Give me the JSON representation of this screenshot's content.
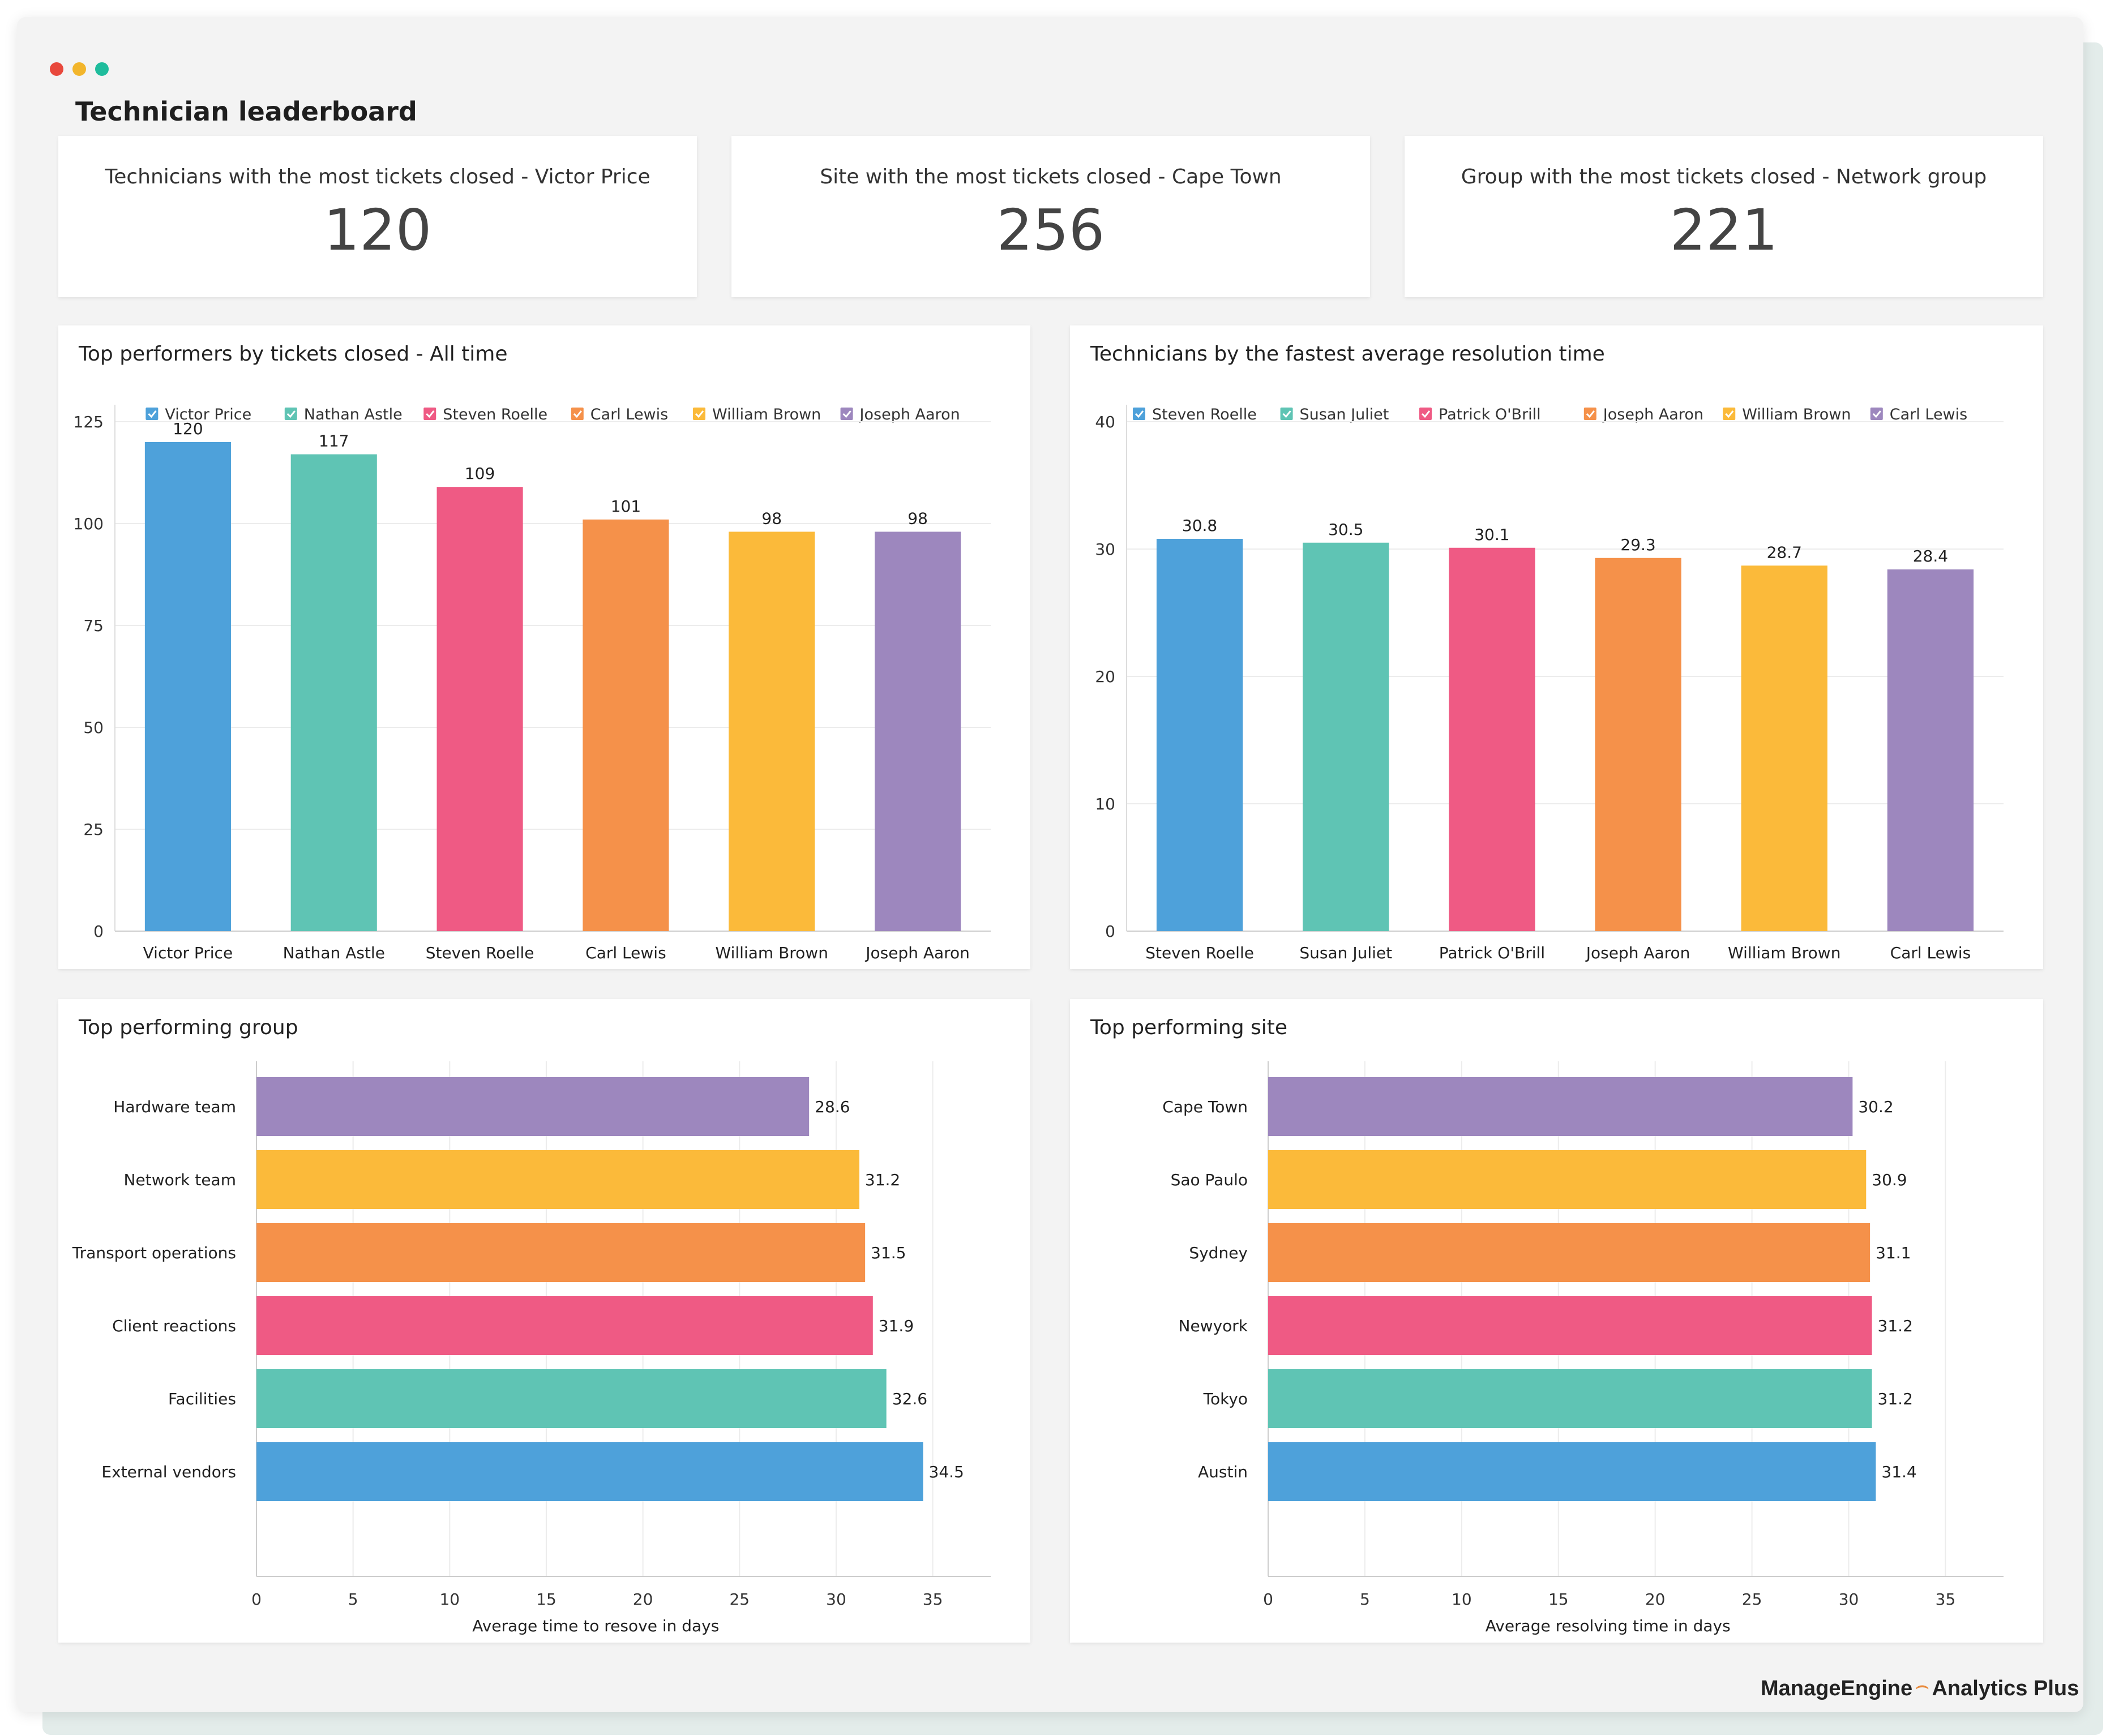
{
  "window": {
    "controls": [
      {
        "name": "close",
        "color": "#e8483c"
      },
      {
        "name": "minimize",
        "color": "#f2b52b"
      },
      {
        "name": "maximize",
        "color": "#1ebc9c"
      }
    ]
  },
  "page": {
    "title": "Technician leaderboard"
  },
  "kpis": [
    {
      "label": "Technicians with the most tickets closed - Victor Price",
      "value": "120"
    },
    {
      "label": "Site with the most tickets closed - Cape Town",
      "value": "256"
    },
    {
      "label": "Group with the most tickets closed - Network group",
      "value": "221"
    }
  ],
  "colors": {
    "blue": "#4ea1da",
    "teal": "#5fc4b4",
    "pink": "#ef5a84",
    "orange": "#f5914a",
    "yellow": "#fbba3a",
    "purple": "#9d87be"
  },
  "brand": {
    "company": "ManageEngine",
    "product": "Analytics Plus"
  },
  "chart_data": [
    {
      "id": "top-performers",
      "type": "bar",
      "title": "Top performers by tickets closed - All time",
      "categories": [
        "Victor Price",
        "Nathan Astle",
        "Steven Roelle",
        "Carl Lewis",
        "William Brown",
        "Joseph Aaron"
      ],
      "values": [
        120,
        117,
        109,
        101,
        98,
        98
      ],
      "value_labels": [
        "120",
        "117",
        "109",
        "101",
        "98",
        "98"
      ],
      "colors": [
        "#4ea1da",
        "#5fc4b4",
        "#ef5a84",
        "#f5914a",
        "#fbba3a",
        "#9d87be"
      ],
      "legend": [
        "Victor Price",
        "Nathan Astle",
        "Steven Roelle",
        "Carl Lewis",
        "William Brown",
        "Joseph Aaron"
      ],
      "legend_position": "top-right",
      "yticks": [
        0,
        25,
        50,
        75,
        100,
        125
      ],
      "ylim": [
        0,
        125
      ],
      "grid": true
    },
    {
      "id": "fastest-resolution",
      "type": "bar",
      "title": "Technicians by the fastest average resolution time",
      "categories": [
        "Steven Roelle",
        "Susan Juliet",
        "Patrick O'Brill",
        "Joseph Aaron",
        "William Brown",
        "Carl Lewis"
      ],
      "values": [
        30.8,
        30.5,
        30.1,
        29.3,
        28.7,
        28.4
      ],
      "value_labels": [
        "30.8",
        "30.5",
        "30.1",
        "29.3",
        "28.7",
        "28.4"
      ],
      "colors": [
        "#4ea1da",
        "#5fc4b4",
        "#ef5a84",
        "#f5914a",
        "#fbba3a",
        "#9d87be"
      ],
      "legend": [
        "Steven Roelle",
        "Susan Juliet",
        "Patrick O'Brill",
        "Joseph Aaron",
        "William Brown",
        "Carl Lewis"
      ],
      "legend_position": "top-right",
      "yticks": [
        0,
        10,
        20,
        30,
        40
      ],
      "ylim": [
        0,
        40
      ],
      "grid": true
    },
    {
      "id": "top-group",
      "type": "bar",
      "orientation": "horizontal",
      "title": "Top performing group",
      "categories": [
        "Hardware team",
        "Network team",
        "Transport operations",
        "Client reactions",
        "Facilities",
        "External vendors"
      ],
      "values": [
        28.6,
        31.2,
        31.5,
        31.9,
        32.6,
        34.5
      ],
      "value_labels": [
        "28.6",
        "31.2",
        "31.5",
        "31.9",
        "32.6",
        "34.5"
      ],
      "colors": [
        "#9d87be",
        "#fbba3a",
        "#f5914a",
        "#ef5a84",
        "#5fc4b4",
        "#4ea1da"
      ],
      "xticks": [
        0,
        5,
        10,
        15,
        20,
        25,
        30,
        35
      ],
      "xlim": [
        0,
        38
      ],
      "xlabel": "Average time to resove in days",
      "grid": true
    },
    {
      "id": "top-site",
      "type": "bar",
      "orientation": "horizontal",
      "title": "Top performing site",
      "categories": [
        "Cape Town",
        "Sao Paulo",
        "Sydney",
        "Newyork",
        "Tokyo",
        "Austin"
      ],
      "values": [
        30.2,
        30.9,
        31.1,
        31.2,
        31.2,
        31.4
      ],
      "value_labels": [
        "30.2",
        "30.9",
        "31.1",
        "31.2",
        "31.2",
        "31.4"
      ],
      "colors": [
        "#9d87be",
        "#fbba3a",
        "#f5914a",
        "#ef5a84",
        "#5fc4b4",
        "#4ea1da"
      ],
      "xticks": [
        0,
        5,
        10,
        15,
        20,
        25,
        30,
        35
      ],
      "xlim": [
        0,
        38
      ],
      "xlabel": "Average resolving time in days",
      "grid": true
    }
  ]
}
